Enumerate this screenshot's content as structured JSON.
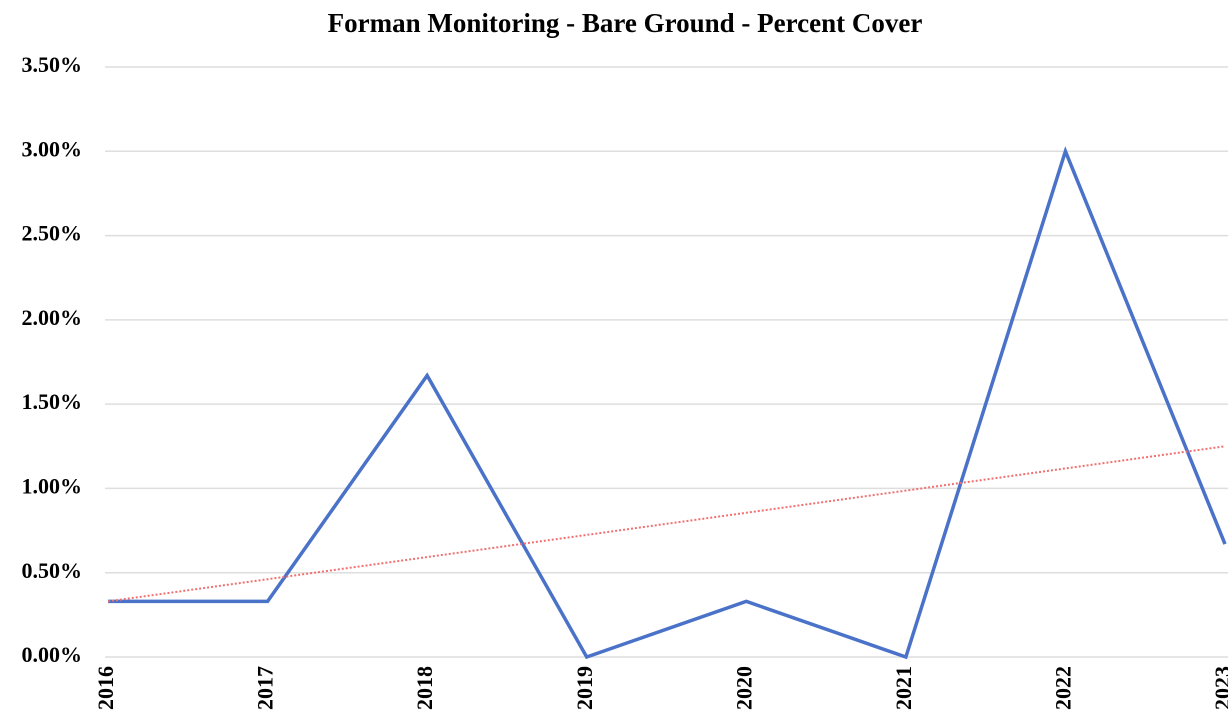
{
  "chart_data": {
    "type": "line",
    "title": "Forman Monitoring - Bare Ground - Percent Cover",
    "categories": [
      "2016",
      "2017",
      "2018",
      "2019",
      "2020",
      "2021",
      "2022",
      "2023"
    ],
    "values": [
      0.33,
      0.33,
      1.67,
      0,
      0.33,
      0,
      3.0,
      0.67
    ],
    "color": "#4a72c8",
    "trendline": {
      "color": "#f07070",
      "style": "dotted",
      "values": [
        0.33,
        1.25
      ]
    },
    "ylim": [
      0,
      3.5
    ],
    "yticks": [
      {
        "value": 0,
        "label": "0.00%"
      },
      {
        "value": 0.5,
        "label": "0.50%"
      },
      {
        "value": 1,
        "label": "1.00%"
      },
      {
        "value": 1.5,
        "label": "1.50%"
      },
      {
        "value": 2,
        "label": "2.00%"
      },
      {
        "value": 2.5,
        "label": "2.50%"
      },
      {
        "value": 3,
        "label": "3.00%"
      },
      {
        "value": 3.5,
        "label": "3.50%"
      }
    ],
    "grid": true
  }
}
